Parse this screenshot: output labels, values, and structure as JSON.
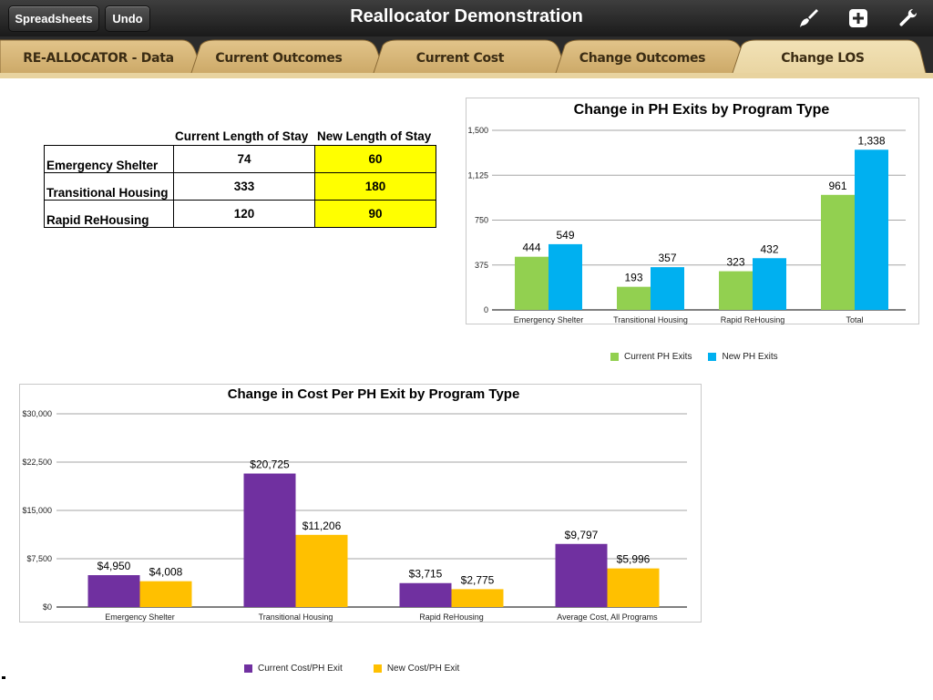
{
  "toolbar": {
    "spreadsheets_label": "Spreadsheets",
    "undo_label": "Undo",
    "title": "Reallocator Demonstration",
    "icons": [
      "paintbrush-icon",
      "add-icon",
      "wrench-icon"
    ]
  },
  "tabs": [
    {
      "label": "RE-ALLOCATOR - Data",
      "active": false
    },
    {
      "label": "Current Outcomes",
      "active": false
    },
    {
      "label": "Current Cost",
      "active": false
    },
    {
      "label": "Change Outcomes",
      "active": false
    },
    {
      "label": "Change LOS",
      "active": true
    }
  ],
  "los_table": {
    "header_current": "Current Length of Stay",
    "header_new": "New Length of Stay",
    "rows": [
      {
        "label": "Emergency Shelter",
        "current": "74",
        "new": "60"
      },
      {
        "label": "Transitional Housing",
        "current": "333",
        "new": "180"
      },
      {
        "label": "Rapid ReHousing",
        "current": "120",
        "new": "90"
      }
    ]
  },
  "colors": {
    "green": "#92d050",
    "blue": "#00b0f0",
    "purple": "#7030a0",
    "gold": "#ffc000",
    "highlight": "#ffff00"
  },
  "chart_data": [
    {
      "type": "bar",
      "title": "Change in PH Exits by Program Type",
      "categories": [
        "Emergency Shelter",
        "Transitional Housing",
        "Rapid ReHousing",
        "Total"
      ],
      "series": [
        {
          "name": "Current PH Exits",
          "values": [
            444,
            193,
            323,
            961
          ],
          "labels": [
            "444",
            "193",
            "323",
            "961"
          ]
        },
        {
          "name": "New PH Exits",
          "values": [
            549,
            357,
            432,
            1338
          ],
          "labels": [
            "549",
            "357",
            "432",
            "1,338"
          ]
        }
      ],
      "yticks": [
        0,
        375,
        750,
        1125,
        1500
      ],
      "ytick_labels": [
        "0",
        "375",
        "750",
        "1,125",
        "1,500"
      ],
      "ylim": [
        0,
        1500
      ],
      "legend": "bottom"
    },
    {
      "type": "bar",
      "title": "Change in Cost Per PH Exit by Program Type",
      "categories": [
        "Emergency Shelter",
        "Transitional Housing",
        "Rapid ReHousing",
        "Average Cost, All Programs"
      ],
      "series": [
        {
          "name": "Current Cost/PH Exit",
          "values": [
            4950,
            20725,
            3715,
            9797
          ],
          "labels": [
            "$4,950",
            "$20,725",
            "$3,715",
            "$9,797"
          ]
        },
        {
          "name": "New Cost/PH Exit",
          "values": [
            4008,
            11206,
            2775,
            5996
          ],
          "labels": [
            "$4,008",
            "$11,206",
            "$2,775",
            "$5,996"
          ]
        }
      ],
      "yticks": [
        0,
        7500,
        15000,
        22500,
        30000
      ],
      "ytick_labels": [
        "$0",
        "$7,500",
        "$15,000",
        "$22,500",
        "$30,000"
      ],
      "ylim": [
        0,
        30000
      ],
      "legend": "bottom"
    }
  ]
}
